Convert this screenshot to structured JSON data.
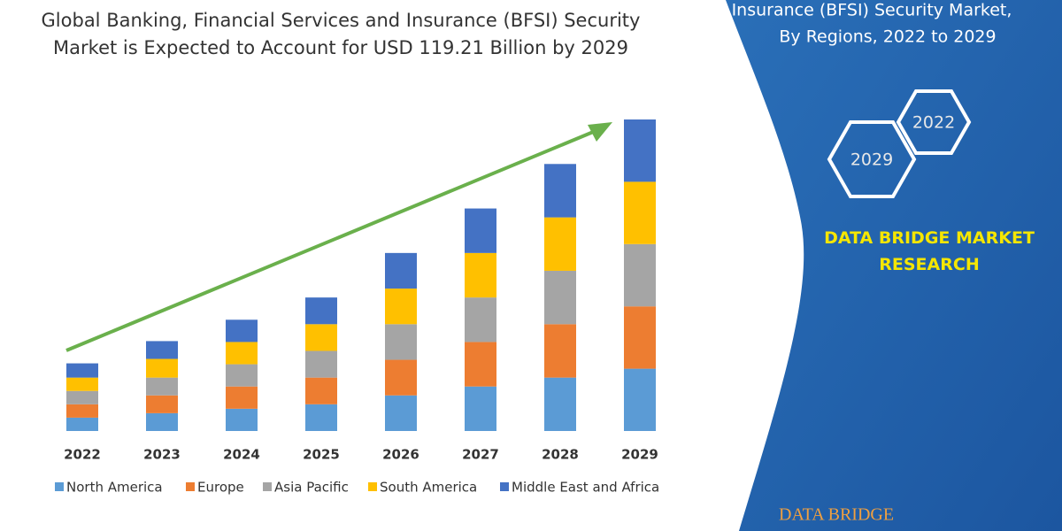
{
  "chart_data": {
    "type": "bar",
    "stacked": true,
    "title": "Global Banking, Financial Services and Insurance (BFSI) Security Market is Expected to Account for USD 119.21 Billion by 2029",
    "categories": [
      "2022",
      "2023",
      "2024",
      "2025",
      "2026",
      "2027",
      "2028",
      "2029"
    ],
    "series": [
      {
        "name": "North America",
        "color": "#5b9bd5",
        "values": [
          15,
          20,
          25,
          30,
          40,
          50,
          60,
          70
        ]
      },
      {
        "name": "Europe",
        "color": "#ed7d31",
        "values": [
          15,
          20,
          25,
          30,
          40,
          50,
          60,
          70
        ]
      },
      {
        "name": "Asia Pacific",
        "color": "#a5a5a5",
        "values": [
          15,
          20,
          25,
          30,
          40,
          50,
          60,
          70
        ]
      },
      {
        "name": "South America",
        "color": "#ffc000",
        "values": [
          15,
          21,
          25,
          30,
          40,
          50,
          60,
          70
        ]
      },
      {
        "name": "Middle East and Africa",
        "color": "#4472c4",
        "values": [
          16,
          20,
          25,
          30,
          40,
          50,
          60,
          70
        ]
      }
    ]
  },
  "side_panel": {
    "heading_lines": [
      "Insurance (BFSI) Security Market,",
      "By Regions, 2022 to 2029"
    ],
    "hexagons": [
      "2022",
      "2029"
    ],
    "brand": "DATA BRIDGE MARKET RESEARCH",
    "logo_text": "DATA BRIDGE"
  }
}
